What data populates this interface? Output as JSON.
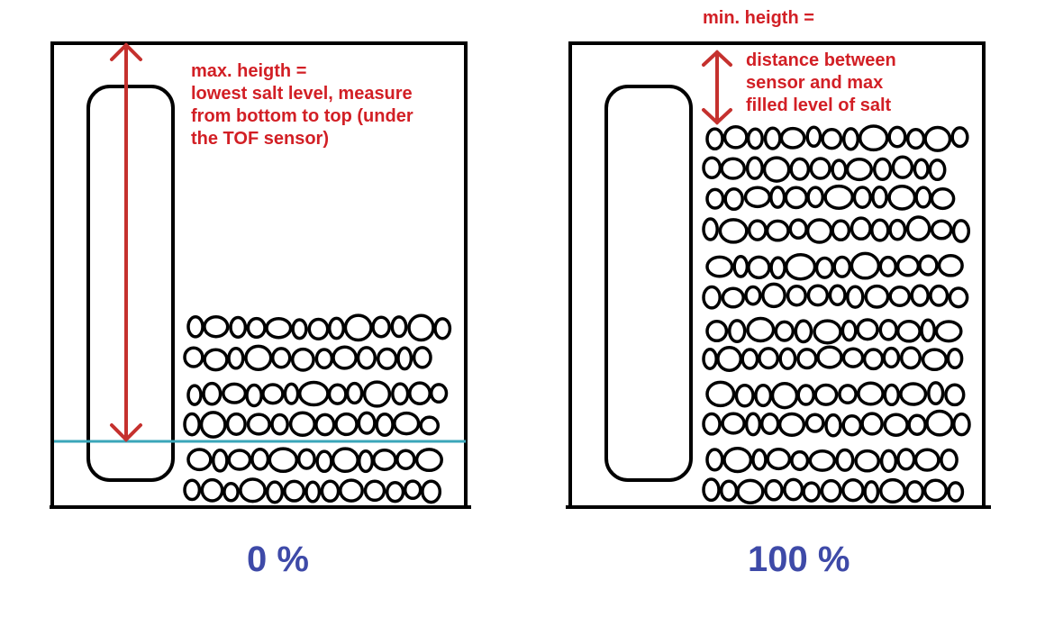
{
  "left_panel": {
    "note_lines": [
      "max. heigth =",
      "lowest salt level, measure",
      "from bottom to top (under",
      "the TOF sensor)"
    ],
    "percent_label": "0 %"
  },
  "right_panel": {
    "note_title": "min. heigth =",
    "note_lines": [
      "distance between",
      "sensor and max",
      "filled level of salt"
    ],
    "percent_label": "100 %"
  },
  "colors": {
    "annotation": "#d21f25",
    "percent_label": "#3e4aa8",
    "level_line": "#3aa6b9",
    "outline": "#000000"
  }
}
